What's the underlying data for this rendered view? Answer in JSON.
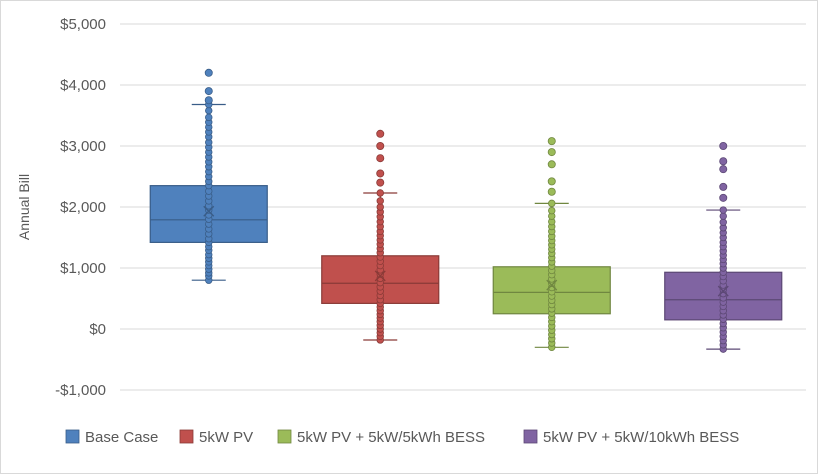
{
  "chart_data": {
    "type": "box",
    "title": "",
    "xlabel": "",
    "ylabel": "Annual Bill",
    "ylim": [
      -1000,
      5000
    ],
    "y_ticks": [
      5000,
      4000,
      3000,
      2000,
      1000,
      0,
      -1000
    ],
    "y_tick_labels": [
      "$5,000",
      "$4,000",
      "$3,000",
      "$2,000",
      "$1,000",
      "$0",
      "-$1,000"
    ],
    "grid": true,
    "legend_position": "bottom",
    "series": [
      {
        "name": "Base Case",
        "color": "#4f81bd",
        "whisker_low": 800,
        "q1": 1420,
        "median": 1790,
        "q3": 2350,
        "whisker_high": 3680,
        "mean": 1930,
        "points": [
          800,
          870,
          920,
          980,
          1040,
          1100,
          1160,
          1220,
          1290,
          1350,
          1420,
          1480,
          1560,
          1640,
          1720,
          1800,
          1870,
          1950,
          2020,
          2100,
          2180,
          2260,
          2350,
          2420,
          2500,
          2580,
          2660,
          2740,
          2820,
          2900,
          2980,
          3060,
          3150,
          3230,
          3310,
          3390,
          3470,
          3580,
          3680
        ],
        "outliers": [
          3750,
          3900,
          4200
        ]
      },
      {
        "name": "5kW PV",
        "color": "#c0504d",
        "whisker_low": -180,
        "q1": 420,
        "median": 750,
        "q3": 1200,
        "whisker_high": 2230,
        "mean": 870,
        "points": [
          -180,
          -120,
          -60,
          0,
          60,
          120,
          180,
          240,
          300,
          360,
          420,
          480,
          550,
          620,
          690,
          760,
          830,
          900,
          970,
          1040,
          1110,
          1180,
          1250,
          1320,
          1390,
          1460,
          1530,
          1600,
          1680,
          1760,
          1840,
          1920,
          2000,
          2100,
          2230
        ],
        "outliers": [
          2400,
          2550,
          2800,
          3000,
          3200
        ]
      },
      {
        "name": "5kW PV + 5kW/5kWh BESS",
        "color": "#9bbb59",
        "whisker_low": -300,
        "q1": 250,
        "median": 600,
        "q3": 1020,
        "whisker_high": 2060,
        "mean": 720,
        "points": [
          -300,
          -230,
          -160,
          -90,
          -20,
          50,
          120,
          190,
          260,
          330,
          400,
          470,
          540,
          610,
          680,
          750,
          820,
          890,
          960,
          1030,
          1100,
          1170,
          1240,
          1310,
          1380,
          1450,
          1520,
          1600,
          1680,
          1760,
          1850,
          1940,
          2060
        ],
        "outliers": [
          2250,
          2420,
          2700,
          2900,
          3080
        ]
      },
      {
        "name": "5kW PV + 5kW/10kWh BESS",
        "color": "#8064a2",
        "whisker_low": -330,
        "q1": 150,
        "median": 480,
        "q3": 930,
        "whisker_high": 1950,
        "mean": 620,
        "points": [
          -330,
          -260,
          -190,
          -120,
          -50,
          20,
          90,
          160,
          230,
          300,
          370,
          440,
          510,
          580,
          650,
          720,
          790,
          860,
          930,
          1000,
          1070,
          1140,
          1210,
          1280,
          1350,
          1420,
          1500,
          1580,
          1660,
          1750,
          1850,
          1950
        ],
        "outliers": [
          2150,
          2330,
          2620,
          2750,
          3000
        ]
      }
    ]
  }
}
